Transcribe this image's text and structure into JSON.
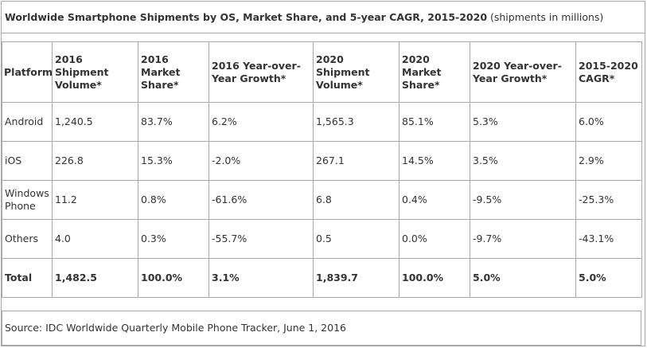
{
  "title": {
    "main": "Worldwide Smartphone Shipments by OS, Market Share, and 5-year CAGR, 2015-2020",
    "note": " (shipments in millions)"
  },
  "columns": [
    "Platform",
    "2016 Shipment Volume*",
    "2016 Market Share*",
    "2016 Year-over-Year Growth*",
    "2020 Shipment Volume*",
    "2020 Market Share*",
    "2020 Year-over-Year Growth*",
    "2015-2020 CAGR*"
  ],
  "rows": [
    [
      "Android",
      "1,240.5",
      "83.7%",
      "6.2%",
      "1,565.3",
      "85.1%",
      "5.3%",
      "6.0%"
    ],
    [
      "iOS",
      "226.8",
      "15.3%",
      "-2.0%",
      "267.1",
      "14.5%",
      "3.5%",
      "2.9%"
    ],
    [
      "Windows Phone",
      "11.2",
      "0.8%",
      "-61.6%",
      "6.8",
      "0.4%",
      "-9.5%",
      "-25.3%"
    ],
    [
      "Others",
      "4.0",
      "0.3%",
      "-55.7%",
      "0.5",
      "0.0%",
      "-9.7%",
      "-43.1%"
    ]
  ],
  "total": [
    "Total",
    "1,482.5",
    "100.0%",
    "3.1%",
    "1,839.7",
    "100.0%",
    "5.0%",
    "5.0%"
  ],
  "source": "Source: IDC Worldwide Quarterly Mobile Phone Tracker, June 1, 2016",
  "colors": {
    "border": "#a8a8a8",
    "text": "#333333"
  },
  "chart_data": {
    "type": "table",
    "title": "Worldwide Smartphone Shipments by OS, Market Share, and 5-year CAGR, 2015-2020 (shipments in millions)",
    "columns": [
      "Platform",
      "2016 Shipment Volume*",
      "2016 Market Share*",
      "2016 Year-over-Year Growth*",
      "2020 Shipment Volume*",
      "2020 Market Share*",
      "2020 Year-over-Year Growth*",
      "2015-2020 CAGR*"
    ],
    "rows": [
      [
        "Android",
        1240.5,
        83.7,
        6.2,
        1565.3,
        85.1,
        5.3,
        6.0
      ],
      [
        "iOS",
        226.8,
        15.3,
        -2.0,
        267.1,
        14.5,
        3.5,
        2.9
      ],
      [
        "Windows Phone",
        11.2,
        0.8,
        -61.6,
        6.8,
        0.4,
        -9.5,
        -25.3
      ],
      [
        "Others",
        4.0,
        0.3,
        -55.7,
        0.5,
        0.0,
        -9.7,
        -43.1
      ],
      [
        "Total",
        1482.5,
        100.0,
        3.1,
        1839.7,
        100.0,
        5.0,
        5.0
      ]
    ]
  }
}
